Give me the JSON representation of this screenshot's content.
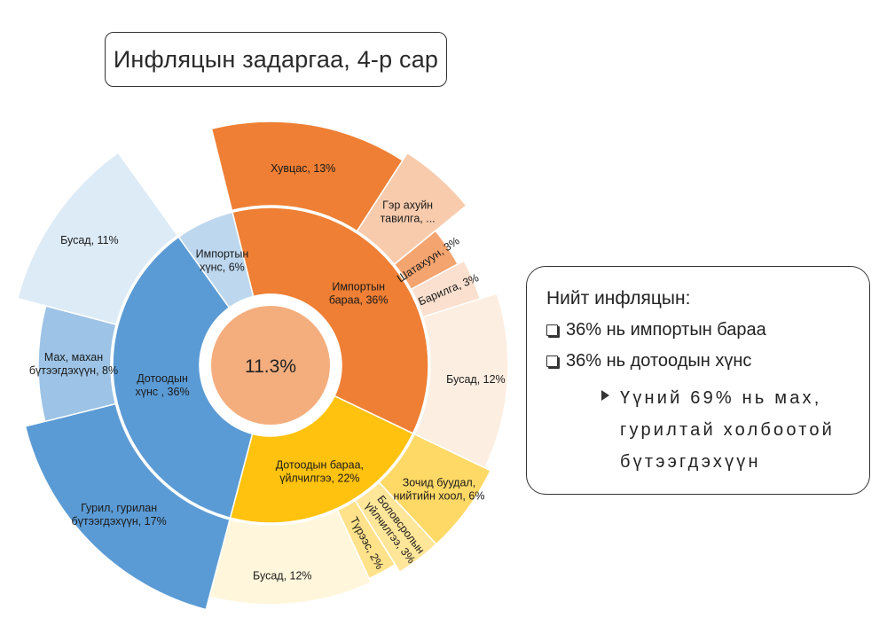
{
  "title": "Инфляцын задаргаа, 4-р сар",
  "chart_data": {
    "type": "sunburst",
    "center_label": "11.3%",
    "inner": [
      {
        "name": "Импортын бараа, 36%",
        "value": 36,
        "color": "#EE7F34",
        "label_lines": [
          "Импортын",
          "бараа, 36%"
        ]
      },
      {
        "name": "Дотоодын бараа, үйлчилгээ, 22%",
        "value": 22,
        "color": "#FFC20E",
        "label_lines": [
          "Дотоодын бараа,",
          "үйлчилгээ, 22%"
        ]
      },
      {
        "name": "Дотоодын хүнс , 36%",
        "value": 36,
        "color": "#5B9BD5",
        "label_lines": [
          "Дотоодын",
          "хүнс , 36%"
        ]
      },
      {
        "name": "Импортын хүнс, 6%",
        "value": 6,
        "color": "#BDD7EE",
        "label_lines": [
          "Импортын",
          "хүнс, 6%"
        ]
      }
    ],
    "outer": [
      {
        "name": "Гэр ахуйн тавилга, ...",
        "parent": 0,
        "value": 5,
        "color": "#F8CBAD",
        "label_lines": [
          "Гэр ахуйн",
          "тавилга, ..."
        ]
      },
      {
        "name": "Шатахуун, 3%",
        "parent": 0,
        "value": 3,
        "color": "#F4A46F",
        "label_lines": [
          "Шатахуун, 3%"
        ]
      },
      {
        "name": "Барилга, 3%",
        "parent": 0,
        "value": 3,
        "color": "#FBE0CF",
        "label_lines": [
          "Барилга, 3%"
        ]
      },
      {
        "name": "Бусад, 12%",
        "parent": 0,
        "value": 12,
        "color": "#FDEEE2",
        "label_lines": [
          "Бусад, 12%"
        ]
      },
      {
        "name": "Зочид буудал, нийтийн хоол, 6%",
        "parent": 1,
        "value": 6,
        "color": "#FFD966",
        "label_lines": [
          "Зочид буудал,",
          "нийтийн хоол, 6%"
        ]
      },
      {
        "name": "Боловсролын үйлчилгээ, 3%",
        "parent": 1,
        "value": 3,
        "color": "#FFE699",
        "label_lines": [
          "Боловсролын",
          "үйлчилгээ, 3%"
        ]
      },
      {
        "name": "Түрээс, 2%",
        "parent": 1,
        "value": 2,
        "color": "#FFE28A",
        "label_lines": [
          "Түрээс, 2%"
        ]
      },
      {
        "name": "Бусад, 12%",
        "parent": 1,
        "value": 12,
        "color": "#FFF6DC",
        "label_lines": [
          "Бусад, 12%"
        ]
      },
      {
        "name": "Гурил, гурилан бүтээгдэхүүн, 17%",
        "parent": 2,
        "value": 17,
        "color": "#5B9BD5",
        "label_lines": [
          "Гурил, гурилан",
          "бүтээгдэхүүн, 17%"
        ]
      },
      {
        "name": "Мах, махан бүтээгдэхүүн, 8%",
        "parent": 2,
        "value": 8,
        "color": "#9DC3E6",
        "label_lines": [
          "Мах, махан",
          "бүтээгдэхүүн, 8%"
        ]
      },
      {
        "name": "Бусад, 11%",
        "parent": 2,
        "value": 11,
        "color": "#DDEBF7",
        "label_lines": [
          "Бусад, 11%"
        ]
      },
      {
        "name": "Хувцас, 13%",
        "parent": 0,
        "value": 13,
        "color": "#EE7F34",
        "label_lines": [
          "Хувцас, 13%"
        ]
      }
    ]
  },
  "notes": {
    "heading": "Нийт инфляцын:",
    "items": [
      "36% нь импортын бараа",
      "36% нь дотоодын хүнс"
    ],
    "sub_item": "Үүний 69% нь мах, гурилтай холбоотой бүтээгдэхүүн"
  }
}
